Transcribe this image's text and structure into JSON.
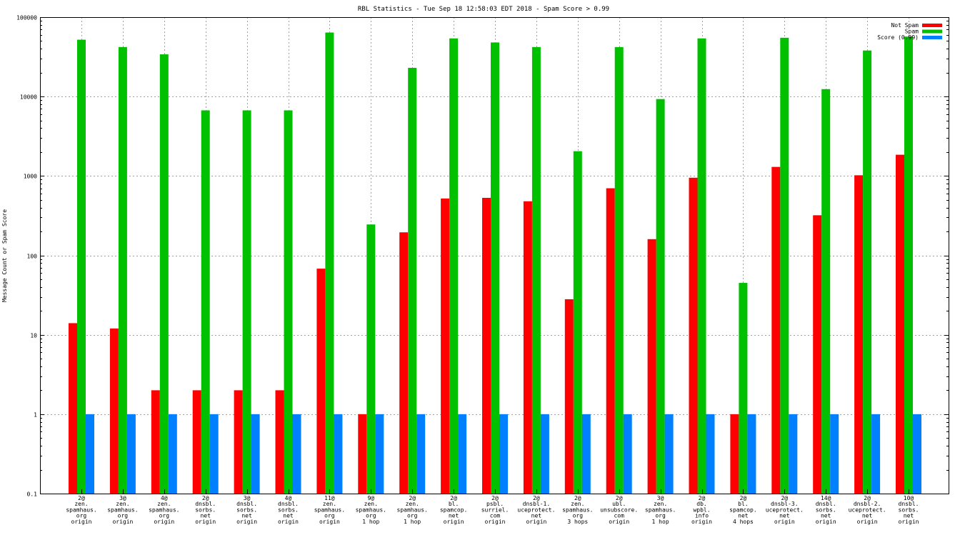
{
  "chart_data": {
    "type": "bar",
    "title": "RBL Statistics - Tue Sep 18 12:58:03 EDT 2018 - Spam Score > 0.99",
    "xlabel": "",
    "ylabel": "Message Count or Spam Score",
    "yscale": "log",
    "ylim": [
      0.1,
      100000
    ],
    "yticks": [
      "0.1",
      "1",
      "10",
      "100",
      "1000",
      "10000",
      "100000"
    ],
    "grid": true,
    "legend_position": "top-right",
    "categories": [
      [
        "2@",
        "zen.",
        "spamhaus.",
        "org",
        "origin"
      ],
      [
        "3@",
        "zen.",
        "spamhaus.",
        "org",
        "origin"
      ],
      [
        "4@",
        "zen.",
        "spamhaus.",
        "org",
        "origin"
      ],
      [
        "2@",
        "dnsbl.",
        "sorbs.",
        "net",
        "origin"
      ],
      [
        "3@",
        "dnsbl.",
        "sorbs.",
        "net",
        "origin"
      ],
      [
        "4@",
        "dnsbl.",
        "sorbs.",
        "net",
        "origin"
      ],
      [
        "11@",
        "zen.",
        "spamhaus.",
        "org",
        "origin"
      ],
      [
        "9@",
        "zen.",
        "spamhaus.",
        "org",
        "1 hop"
      ],
      [
        "2@",
        "zen.",
        "spamhaus.",
        "org",
        "1 hop"
      ],
      [
        "2@",
        "bl.",
        "spamcop.",
        "net",
        "origin"
      ],
      [
        "2@",
        "psbl.",
        "surriel.",
        "com",
        "origin"
      ],
      [
        "2@",
        "dnsbl-1.",
        "uceprotect.",
        "net",
        "origin"
      ],
      [
        "2@",
        "zen.",
        "spamhaus.",
        "org",
        "3 hops"
      ],
      [
        "2@",
        "ubl.",
        "unsubscore.",
        "com",
        "origin"
      ],
      [
        "3@",
        "zen.",
        "spamhaus.",
        "org",
        "1 hop"
      ],
      [
        "2@",
        "db.",
        "wpbl.",
        "info",
        "origin"
      ],
      [
        "2@",
        "bl.",
        "spamcop.",
        "net",
        "4 hops"
      ],
      [
        "2@",
        "dnsbl-3.",
        "uceprotect.",
        "net",
        "origin"
      ],
      [
        "14@",
        "dnsbl.",
        "sorbs.",
        "net",
        "origin"
      ],
      [
        "2@",
        "dnsbl-2.",
        "uceprotect.",
        "net",
        "origin"
      ],
      [
        "10@",
        "dnsbl.",
        "sorbs.",
        "net",
        "origin"
      ]
    ],
    "series": [
      {
        "name": "Not Spam",
        "color": "#ff0000",
        "values": [
          14,
          12,
          2,
          2,
          2,
          2,
          68,
          1,
          195,
          520,
          530,
          480,
          28,
          700,
          160,
          950,
          1,
          1300,
          320,
          1020,
          1850
        ]
      },
      {
        "name": "Spam",
        "color": "#00c000",
        "values": [
          52000,
          42000,
          34000,
          6700,
          6700,
          6700,
          64000,
          245,
          23000,
          54000,
          48000,
          42000,
          2050,
          42000,
          9300,
          54000,
          45,
          55000,
          12400,
          38000,
          57000
        ]
      },
      {
        "name": "Score (0.99)",
        "color": "#0080ff",
        "values": [
          1,
          1,
          1,
          1,
          1,
          1,
          1,
          1,
          1,
          1,
          1,
          1,
          1,
          1,
          1,
          1,
          1,
          1,
          1,
          1,
          1
        ]
      }
    ]
  }
}
